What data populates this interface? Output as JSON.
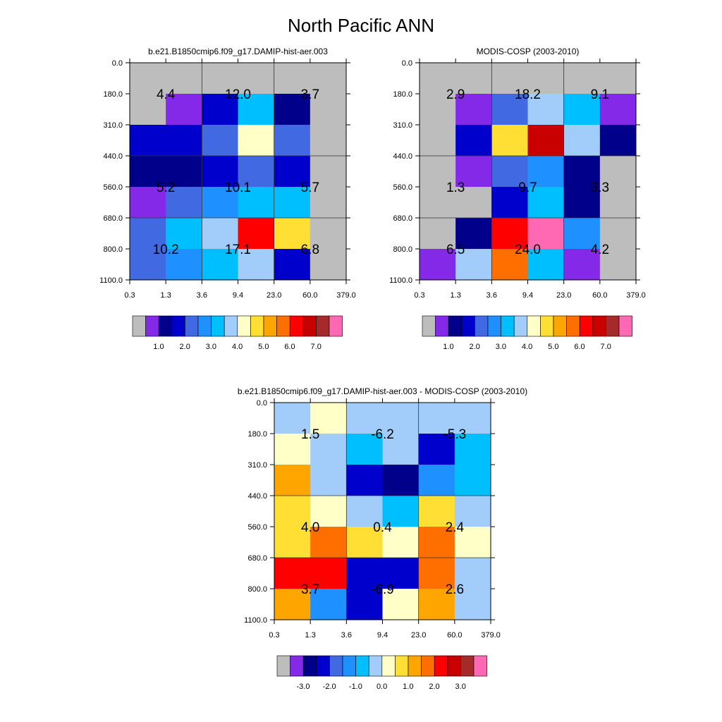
{
  "title": "North Pacific ANN",
  "colors": {
    "gray": "#bdbdbd",
    "violet": "#8429e8",
    "navy": "#00008b",
    "darkblue": "#0000cd",
    "royal": "#4169e1",
    "dodger": "#1e90ff",
    "sky": "#00bfff",
    "lightsky": "#a2cdfa",
    "cream": "#ffffc8",
    "yellow": "#ffdf33",
    "orange": "#ffa500",
    "darkorange": "#ff6f00",
    "red": "#ff0000",
    "crimson": "#c80000",
    "brown": "#a52a2a",
    "pink": "#ff69b4"
  },
  "colorbars": {
    "levels": [
      "gray",
      "violet",
      "navy",
      "darkblue",
      "royal",
      "dodger",
      "sky",
      "lightsky",
      "cream",
      "yellow",
      "orange",
      "darkorange",
      "red",
      "crimson",
      "brown",
      "pink"
    ],
    "abs_labels": [
      "1.0",
      "2.0",
      "3.0",
      "4.0",
      "5.0",
      "6.0",
      "7.0"
    ],
    "diff_labels": [
      "-3.0",
      "-2.0",
      "-1.0",
      "0.0",
      "1.0",
      "2.0",
      "3.0"
    ]
  },
  "chart_data": [
    {
      "type": "heatmap",
      "title": "b.e21.B1850cmip6.f09_g17.DAMIP-hist-aer.003",
      "x_ticks": [
        "0.3",
        "1.3",
        "3.6",
        "9.4",
        "23.0",
        "60.0",
        "379.0"
      ],
      "y_ticks": [
        "0.0",
        "180.0",
        "310.0",
        "440.0",
        "560.0",
        "680.0",
        "800.0",
        "1100.0"
      ],
      "cells": [
        [
          "gray",
          "gray",
          "gray",
          "gray",
          "gray",
          "gray"
        ],
        [
          "gray",
          "violet",
          "darkblue",
          "sky",
          "navy",
          "gray"
        ],
        [
          "darkblue",
          "darkblue",
          "royal",
          "cream",
          "royal",
          "gray"
        ],
        [
          "navy",
          "navy",
          "darkblue",
          "royal",
          "darkblue",
          "gray"
        ],
        [
          "violet",
          "royal",
          "dodger",
          "sky",
          "sky",
          "gray"
        ],
        [
          "royal",
          "sky",
          "lightsky",
          "red",
          "yellow",
          "gray"
        ],
        [
          "royal",
          "dodger",
          "sky",
          "lightsky",
          "darkblue",
          "gray"
        ]
      ],
      "overlay": [
        [
          "4.4",
          "12.0",
          "3.7"
        ],
        [
          "5.2",
          "10.1",
          "5.7"
        ],
        [
          "10.2",
          "17.1",
          "6.8"
        ]
      ],
      "colorbar_labels": "abs_labels"
    },
    {
      "type": "heatmap",
      "title": "MODIS-COSP (2003-2010)",
      "x_ticks": [
        "0.3",
        "1.3",
        "3.6",
        "9.4",
        "23.0",
        "60.0",
        "379.0"
      ],
      "y_ticks": [
        "0.0",
        "180.0",
        "310.0",
        "440.0",
        "560.0",
        "680.0",
        "800.0",
        "1100.0"
      ],
      "cells": [
        [
          "gray",
          "gray",
          "gray",
          "gray",
          "gray",
          "gray"
        ],
        [
          "gray",
          "violet",
          "royal",
          "lightsky",
          "sky",
          "violet"
        ],
        [
          "gray",
          "darkblue",
          "yellow",
          "crimson",
          "lightsky",
          "navy"
        ],
        [
          "gray",
          "violet",
          "royal",
          "dodger",
          "navy",
          "gray"
        ],
        [
          "gray",
          "gray",
          "darkblue",
          "sky",
          "navy",
          "gray"
        ],
        [
          "gray",
          "navy",
          "red",
          "pink",
          "dodger",
          "gray"
        ],
        [
          "violet",
          "lightsky",
          "darkorange",
          "sky",
          "violet",
          "gray"
        ]
      ],
      "overlay": [
        [
          "2.9",
          "18.2",
          "9.1"
        ],
        [
          "1.3",
          "9.7",
          "3.3"
        ],
        [
          "6.5",
          "24.0",
          "4.2"
        ]
      ],
      "colorbar_labels": "abs_labels"
    },
    {
      "type": "heatmap",
      "title": "b.e21.B1850cmip6.f09_g17.DAMIP-hist-aer.003 - MODIS-COSP (2003-2010)",
      "x_ticks": [
        "0.3",
        "1.3",
        "3.6",
        "9.4",
        "23.0",
        "60.0",
        "379.0"
      ],
      "y_ticks": [
        "0.0",
        "180.0",
        "310.0",
        "440.0",
        "560.0",
        "680.0",
        "800.0",
        "1100.0"
      ],
      "cells": [
        [
          "lightsky",
          "cream",
          "lightsky",
          "lightsky",
          "lightsky",
          "lightsky"
        ],
        [
          "cream",
          "lightsky",
          "sky",
          "lightsky",
          "darkblue",
          "sky"
        ],
        [
          "orange",
          "lightsky",
          "darkblue",
          "navy",
          "dodger",
          "sky"
        ],
        [
          "yellow",
          "cream",
          "lightsky",
          "sky",
          "yellow",
          "lightsky"
        ],
        [
          "yellow",
          "darkorange",
          "yellow",
          "cream",
          "darkorange",
          "cream"
        ],
        [
          "red",
          "red",
          "darkblue",
          "darkblue",
          "darkorange",
          "lightsky"
        ],
        [
          "orange",
          "dodger",
          "darkblue",
          "cream",
          "orange",
          "lightsky"
        ]
      ],
      "overlay": [
        [
          "1.5",
          "-6.2",
          "-5.3"
        ],
        [
          "4.0",
          "0.4",
          "2.4"
        ],
        [
          "3.7",
          "-6.9",
          "2.6"
        ]
      ],
      "colorbar_labels": "diff_labels"
    }
  ]
}
